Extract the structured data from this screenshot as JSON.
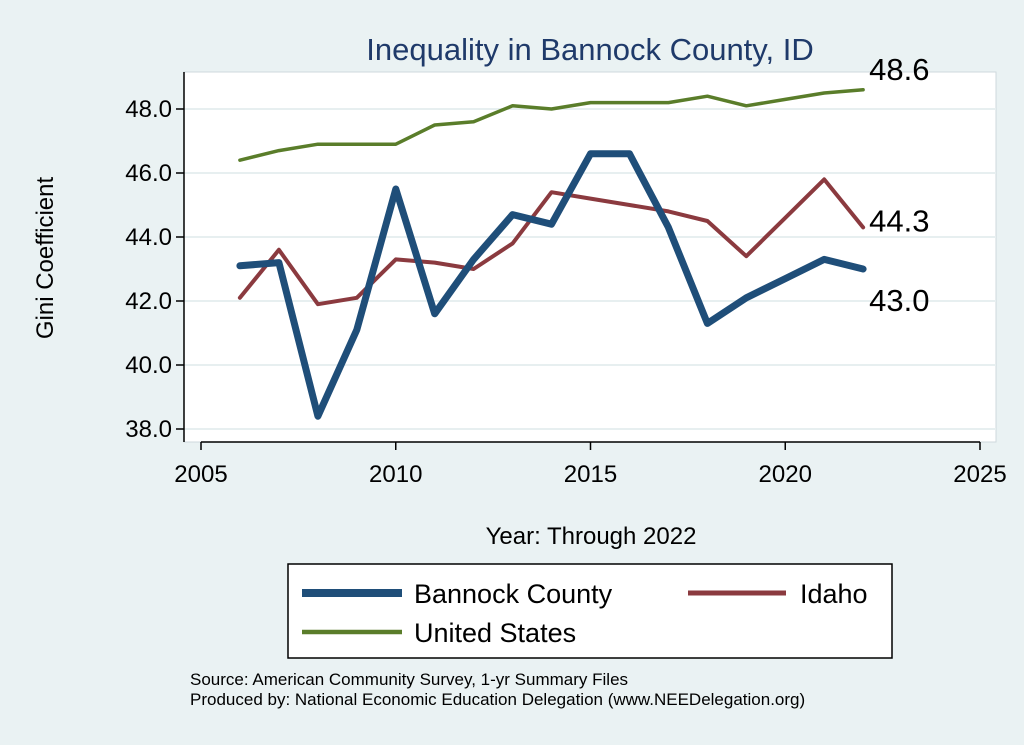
{
  "chart_data": {
    "type": "line",
    "title": "Inequality in Bannock County, ID",
    "xlabel": "Year: Through 2022",
    "ylabel": "Gini Coefficient",
    "xlim": [
      2005,
      2025
    ],
    "ylim": [
      37.6,
      49.2
    ],
    "x_ticks": [
      2005,
      2010,
      2015,
      2020,
      2025
    ],
    "y_ticks": [
      38.0,
      40.0,
      42.0,
      44.0,
      46.0,
      48.0
    ],
    "y_tick_labels": [
      "38.0",
      "40.0",
      "42.0",
      "44.0",
      "46.0",
      "48.0"
    ],
    "grid": true,
    "legend_position": "bottom",
    "x": [
      2006,
      2007,
      2008,
      2009,
      2010,
      2011,
      2012,
      2013,
      2014,
      2015,
      2016,
      2017,
      2018,
      2019,
      2020,
      2021,
      2022
    ],
    "series": [
      {
        "name": "Bannock County",
        "color": "#1f4e79",
        "width": "thick",
        "values": [
          43.1,
          43.2,
          38.4,
          41.1,
          45.5,
          41.6,
          43.3,
          44.7,
          44.4,
          46.6,
          46.6,
          44.3,
          41.3,
          42.1,
          42.7,
          43.3,
          43.0
        ],
        "end_label": "43.0"
      },
      {
        "name": "Idaho",
        "color": "#8b3a3f",
        "width": "medium",
        "values": [
          42.1,
          43.6,
          41.9,
          42.1,
          43.3,
          43.2,
          43.0,
          43.8,
          45.4,
          45.2,
          45.0,
          44.8,
          44.5,
          43.4,
          44.6,
          45.8,
          44.3
        ],
        "end_label": "44.3"
      },
      {
        "name": "United States",
        "color": "#5a7d2a",
        "width": "thin",
        "values": [
          46.4,
          46.7,
          46.9,
          46.9,
          46.9,
          47.5,
          47.6,
          48.1,
          48.0,
          48.2,
          48.2,
          48.2,
          48.4,
          48.1,
          48.3,
          48.5,
          48.6
        ],
        "end_label": "48.6"
      }
    ]
  },
  "colors": {
    "background": "#eaf2f3",
    "plot_background": "#ffffff",
    "grid": "#e7eff0",
    "title": "#1f3a6a"
  },
  "footer": {
    "source": "Source: American Community Survey, 1-yr Summary Files",
    "produced_by": "Produced by: National Economic Education Delegation (www.NEEDelegation.org)"
  }
}
